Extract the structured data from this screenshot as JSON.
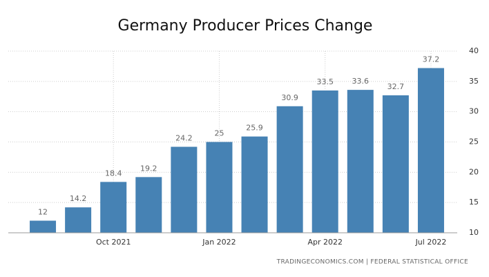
{
  "chart_data": {
    "type": "bar",
    "title": "Germany Producer Prices Change",
    "categories": [
      null,
      null,
      "Oct 2021",
      null,
      null,
      "Jan 2022",
      null,
      null,
      "Apr 2022",
      null,
      null,
      "Jul 2022"
    ],
    "values": [
      12,
      14.2,
      18.4,
      19.2,
      24.2,
      25,
      25.9,
      30.9,
      33.5,
      33.6,
      32.7,
      37.2
    ],
    "color": "#4682b4",
    "ylim": [
      10,
      40
    ],
    "yticks": [
      10,
      15,
      20,
      25,
      30,
      35,
      40
    ],
    "grid": true,
    "source": "TRADINGECONOMICS.COM | FEDERAL STATISTICAL OFFICE"
  }
}
